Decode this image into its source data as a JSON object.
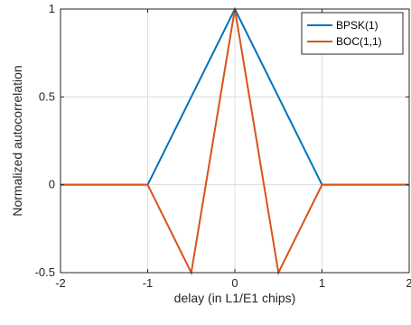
{
  "chart_data": {
    "type": "line",
    "title": "",
    "xlabel": "delay (in L1/E1 chips)",
    "ylabel": "Normalized autocorrelation",
    "xlim": [
      -2,
      2
    ],
    "ylim": [
      -0.5,
      1
    ],
    "xticks": [
      -2,
      -1,
      0,
      1,
      2
    ],
    "xtick_labels": [
      "-2",
      "-1",
      "0",
      "1",
      "2"
    ],
    "yticks": [
      -0.5,
      0,
      0.5,
      1
    ],
    "ytick_labels": [
      "-0.5",
      "0",
      "0.5",
      "1"
    ],
    "grid": true,
    "legend_position": "top-right",
    "series": [
      {
        "name": "BPSK(1)",
        "color": "#0072BD",
        "x": [
          -2,
          -1,
          0,
          1,
          2
        ],
        "y": [
          0,
          0,
          1,
          0,
          0
        ]
      },
      {
        "name": "BOC(1,1)",
        "color": "#D95319",
        "x": [
          -2,
          -1,
          -0.5,
          0,
          0.5,
          1,
          2
        ],
        "y": [
          0,
          0,
          -0.5,
          1,
          -0.5,
          0,
          0
        ]
      }
    ]
  }
}
